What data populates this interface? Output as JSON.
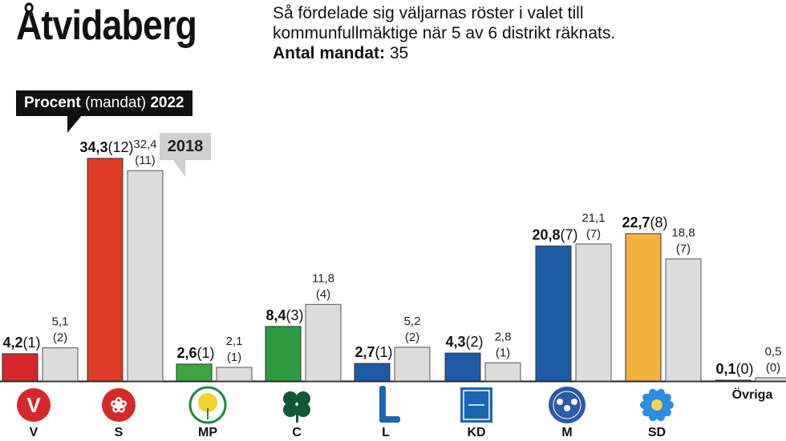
{
  "header": {
    "title": "Åtvidaberg",
    "desc_line1": "Så fördelade sig väljarnas röster i valet till",
    "desc_line2": "kommunfullmäktige när 5 av 6 distrikt räknats.",
    "seats_label": "Antal mandat:",
    "seats_value": "35"
  },
  "legend": {
    "current_bold1": "Procent",
    "current_paren": "(mandat)",
    "current_year": "2022",
    "previous_year": "2018"
  },
  "chart_data": {
    "type": "bar",
    "categories": [
      "V",
      "S",
      "MP",
      "C",
      "L",
      "KD",
      "M",
      "SD",
      "Övriga"
    ],
    "series": [
      {
        "name": "2022",
        "values": [
          4.2,
          34.3,
          2.6,
          8.4,
          2.7,
          4.3,
          20.8,
          22.7,
          0.1
        ],
        "labels": [
          "4,2",
          "34,3",
          "2,6",
          "8,4",
          "2,7",
          "4,3",
          "20,8",
          "22,7",
          "0,1"
        ],
        "seats": [
          "(1)",
          "(12)",
          "(1)",
          "(3)",
          "(1)",
          "(2)",
          "(7)",
          "(8)",
          "(0)"
        ]
      },
      {
        "name": "2018",
        "values": [
          5.1,
          32.4,
          2.1,
          11.8,
          5.2,
          2.8,
          21.1,
          18.8,
          0.5
        ],
        "labels": [
          "5,1",
          "32,4",
          "2,1",
          "11,8",
          "5,2",
          "2,8",
          "21,1",
          "18,8",
          "0,5"
        ],
        "seats": [
          "(2)",
          "(11)",
          "(1)",
          "(4)",
          "(2)",
          "(1)",
          "(7)",
          "(7)",
          "(0)"
        ]
      }
    ],
    "colors": [
      "#d6272a",
      "#dc3c28",
      "#3aa63f",
      "#2e9a3e",
      "#1f5aa6",
      "#1f5aa6",
      "#1f5aa6",
      "#f3b23d",
      "#ffffff"
    ],
    "logo_colors": [
      "#d62828",
      "#d62828",
      "#1f8a3b",
      "#0f5a34",
      "#1a66b3",
      "#1a66b3",
      "#2a5aa8",
      "#2a8de6",
      "#ffffff"
    ],
    "ylim": [
      0,
      35
    ],
    "grid": false
  }
}
